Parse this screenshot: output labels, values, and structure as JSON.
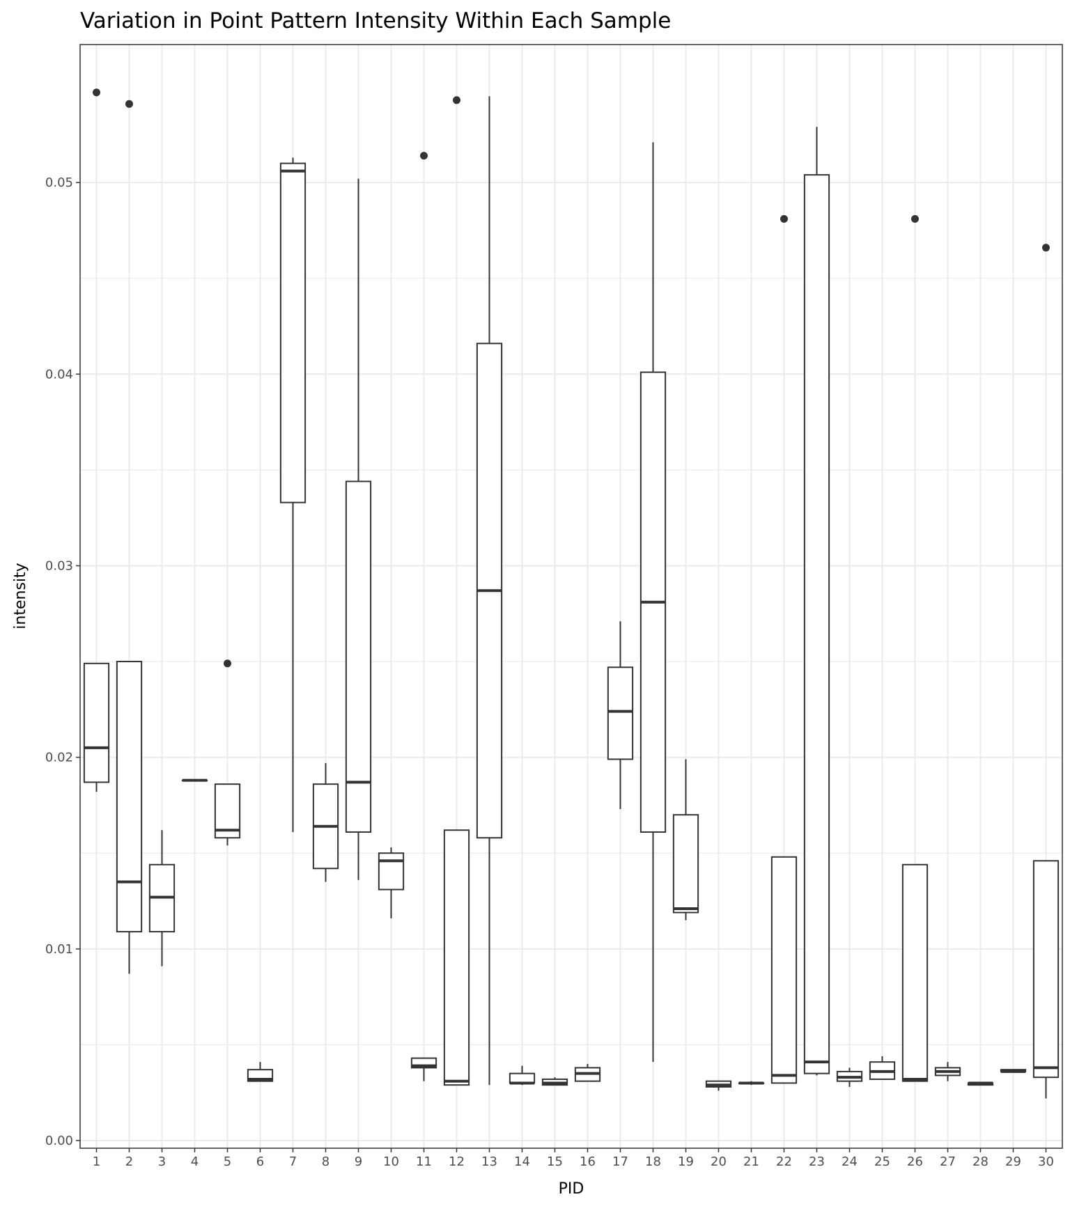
{
  "chart_data": {
    "type": "boxplot",
    "title": "Variation in Point Pattern Intensity Within Each Sample",
    "xlabel": "PID",
    "ylabel": "intensity",
    "ylim": [
      -0.0004,
      0.0572
    ],
    "yticks": [
      0.0,
      0.01,
      0.02,
      0.03,
      0.04,
      0.05
    ],
    "ytick_labels": [
      "0.00",
      "0.01",
      "0.02",
      "0.03",
      "0.04",
      "0.05"
    ],
    "grid": true,
    "theme": "black-and-white",
    "colors": {
      "box": "#333333",
      "grid": "#ebebeb",
      "border": "#333333",
      "fill": "#ffffff"
    },
    "categories": [
      "1",
      "2",
      "3",
      "4",
      "5",
      "6",
      "7",
      "8",
      "9",
      "10",
      "11",
      "12",
      "13",
      "14",
      "15",
      "16",
      "17",
      "18",
      "19",
      "20",
      "21",
      "22",
      "23",
      "24",
      "25",
      "26",
      "27",
      "28",
      "29",
      "30"
    ],
    "boxes": [
      {
        "lower": 0.0182,
        "q1": 0.0187,
        "median": 0.0205,
        "q3": 0.0249,
        "upper": 0.0249,
        "outliers": [
          0.0547
        ]
      },
      {
        "lower": 0.0087,
        "q1": 0.0109,
        "median": 0.0135,
        "q3": 0.025,
        "upper": 0.025,
        "outliers": [
          0.0541
        ]
      },
      {
        "lower": 0.0091,
        "q1": 0.0109,
        "median": 0.0127,
        "q3": 0.0144,
        "upper": 0.0162,
        "outliers": []
      },
      {
        "lower": 0.0188,
        "q1": 0.0188,
        "median": 0.0188,
        "q3": 0.0188,
        "upper": 0.0188,
        "outliers": []
      },
      {
        "lower": 0.0154,
        "q1": 0.0158,
        "median": 0.0162,
        "q3": 0.0186,
        "upper": 0.0186,
        "outliers": [
          0.0249
        ]
      },
      {
        "lower": 0.0031,
        "q1": 0.0031,
        "median": 0.0032,
        "q3": 0.0037,
        "upper": 0.0041,
        "outliers": []
      },
      {
        "lower": 0.0161,
        "q1": 0.0333,
        "median": 0.0506,
        "q3": 0.051,
        "upper": 0.0513,
        "outliers": []
      },
      {
        "lower": 0.0135,
        "q1": 0.0142,
        "median": 0.0164,
        "q3": 0.0186,
        "upper": 0.0197,
        "outliers": []
      },
      {
        "lower": 0.0136,
        "q1": 0.0161,
        "median": 0.0187,
        "q3": 0.0344,
        "upper": 0.0502,
        "outliers": []
      },
      {
        "lower": 0.0116,
        "q1": 0.0131,
        "median": 0.0146,
        "q3": 0.015,
        "upper": 0.0153,
        "outliers": []
      },
      {
        "lower": 0.0031,
        "q1": 0.0038,
        "median": 0.0039,
        "q3": 0.0043,
        "upper": 0.0043,
        "outliers": [
          0.0514
        ]
      },
      {
        "lower": 0.0029,
        "q1": 0.0029,
        "median": 0.0031,
        "q3": 0.0162,
        "upper": 0.0162,
        "outliers": [
          0.0543
        ]
      },
      {
        "lower": 0.0029,
        "q1": 0.0158,
        "median": 0.0287,
        "q3": 0.0416,
        "upper": 0.0545,
        "outliers": []
      },
      {
        "lower": 0.0029,
        "q1": 0.003,
        "median": 0.003,
        "q3": 0.0035,
        "upper": 0.0039,
        "outliers": []
      },
      {
        "lower": 0.0029,
        "q1": 0.0029,
        "median": 0.003,
        "q3": 0.0032,
        "upper": 0.0033,
        "outliers": []
      },
      {
        "lower": 0.0031,
        "q1": 0.0031,
        "median": 0.0035,
        "q3": 0.0038,
        "upper": 0.004,
        "outliers": []
      },
      {
        "lower": 0.0173,
        "q1": 0.0199,
        "median": 0.0224,
        "q3": 0.0247,
        "upper": 0.0271,
        "outliers": []
      },
      {
        "lower": 0.0041,
        "q1": 0.0161,
        "median": 0.0281,
        "q3": 0.0401,
        "upper": 0.0521,
        "outliers": []
      },
      {
        "lower": 0.0115,
        "q1": 0.0119,
        "median": 0.0121,
        "q3": 0.017,
        "upper": 0.0199,
        "outliers": []
      },
      {
        "lower": 0.0026,
        "q1": 0.0028,
        "median": 0.0029,
        "q3": 0.0031,
        "upper": 0.0031,
        "outliers": []
      },
      {
        "lower": 0.0029,
        "q1": 0.003,
        "median": 0.003,
        "q3": 0.003,
        "upper": 0.0031,
        "outliers": []
      },
      {
        "lower": 0.003,
        "q1": 0.003,
        "median": 0.0034,
        "q3": 0.0148,
        "upper": 0.0148,
        "outliers": [
          0.0481
        ]
      },
      {
        "lower": 0.0034,
        "q1": 0.0035,
        "median": 0.0041,
        "q3": 0.0504,
        "upper": 0.0529,
        "outliers": []
      },
      {
        "lower": 0.0028,
        "q1": 0.0031,
        "median": 0.0033,
        "q3": 0.0036,
        "upper": 0.0038,
        "outliers": []
      },
      {
        "lower": 0.0032,
        "q1": 0.0032,
        "median": 0.0036,
        "q3": 0.0041,
        "upper": 0.0044,
        "outliers": []
      },
      {
        "lower": 0.0031,
        "q1": 0.0031,
        "median": 0.0032,
        "q3": 0.0144,
        "upper": 0.0144,
        "outliers": [
          0.0481
        ]
      },
      {
        "lower": 0.0031,
        "q1": 0.0034,
        "median": 0.0036,
        "q3": 0.0038,
        "upper": 0.0041,
        "outliers": []
      },
      {
        "lower": 0.0029,
        "q1": 0.0029,
        "median": 0.003,
        "q3": 0.003,
        "upper": 0.003,
        "outliers": []
      },
      {
        "lower": 0.0036,
        "q1": 0.0036,
        "median": 0.0036,
        "q3": 0.0037,
        "upper": 0.0037,
        "outliers": []
      },
      {
        "lower": 0.0022,
        "q1": 0.0033,
        "median": 0.0038,
        "q3": 0.0146,
        "upper": 0.0146,
        "outliers": [
          0.0466
        ]
      }
    ]
  }
}
